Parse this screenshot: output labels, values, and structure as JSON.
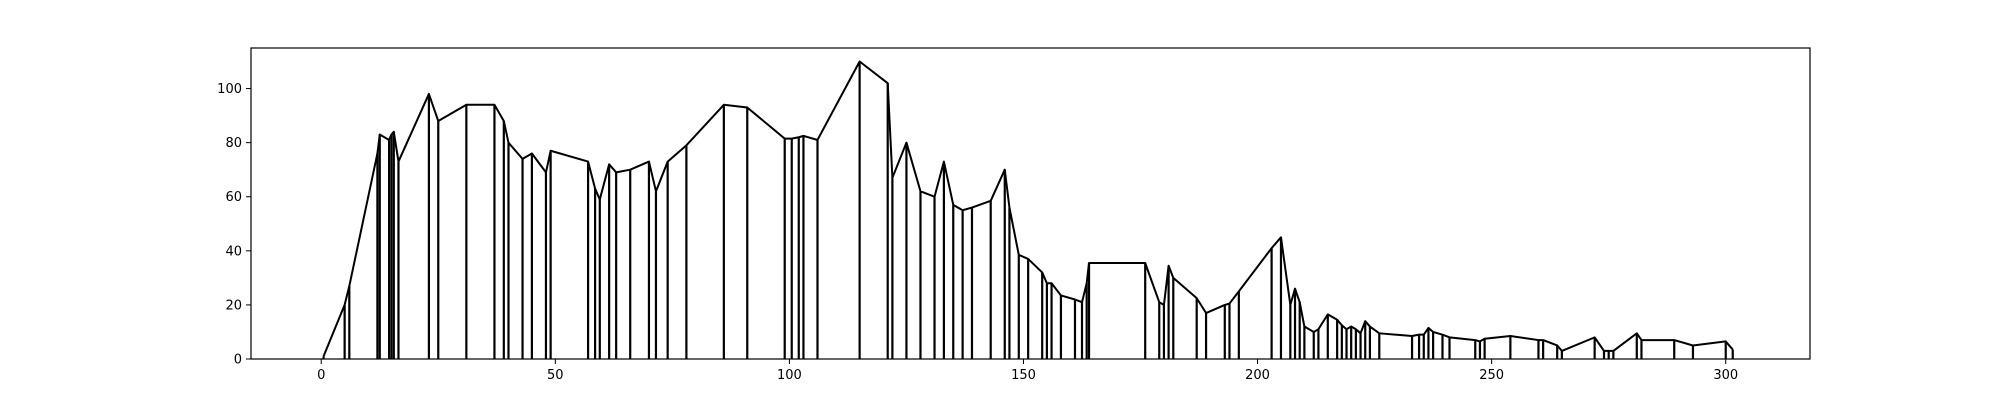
{
  "chart_data": {
    "type": "line",
    "title": "",
    "xlabel": "",
    "ylabel": "",
    "xlim": [
      -15,
      318
    ],
    "ylim": [
      0,
      115
    ],
    "x_ticks": [
      0,
      50,
      100,
      150,
      200,
      250,
      300
    ],
    "y_ticks": [
      0,
      20,
      40,
      60,
      80,
      100
    ],
    "grid": false,
    "legend": "none",
    "series_color": "#000000",
    "note": "Each sample is drawn as a vertical stem from 0 to its value; consecutive tops are joined by a line.",
    "points": [
      [
        0.5,
        1.0
      ],
      [
        5.0,
        20.0
      ],
      [
        6.0,
        27.0
      ],
      [
        12.0,
        76.0
      ],
      [
        12.5,
        83.0
      ],
      [
        14.5,
        81.0
      ],
      [
        15.0,
        83.0
      ],
      [
        15.5,
        84.0
      ],
      [
        16.5,
        73.0
      ],
      [
        23.0,
        98.0
      ],
      [
        25.0,
        88.0
      ],
      [
        31.0,
        94.0
      ],
      [
        37.0,
        94.0
      ],
      [
        39.0,
        88.0
      ],
      [
        40.0,
        80.0
      ],
      [
        43.0,
        74.0
      ],
      [
        45.0,
        76.0
      ],
      [
        48.0,
        69.0
      ],
      [
        49.0,
        77.0
      ],
      [
        57.0,
        73.0
      ],
      [
        58.5,
        63.0
      ],
      [
        59.5,
        59.0
      ],
      [
        61.5,
        72.0
      ],
      [
        63.0,
        69.0
      ],
      [
        66.0,
        70.0
      ],
      [
        70.0,
        73.0
      ],
      [
        71.5,
        62.0
      ],
      [
        74.0,
        73.0
      ],
      [
        78.0,
        79.0
      ],
      [
        86.0,
        94.0
      ],
      [
        91.0,
        93.0
      ],
      [
        99.0,
        81.5
      ],
      [
        100.5,
        81.5
      ],
      [
        102.0,
        82.0
      ],
      [
        103.0,
        82.5
      ],
      [
        106.0,
        81.0
      ],
      [
        115.0,
        110.0
      ],
      [
        121.0,
        102.0
      ],
      [
        122.0,
        67.0
      ],
      [
        125.0,
        80.0
      ],
      [
        128.0,
        62.0
      ],
      [
        131.0,
        60.0
      ],
      [
        133.0,
        73.0
      ],
      [
        135.0,
        57.0
      ],
      [
        137.0,
        55.0
      ],
      [
        139.0,
        56.0
      ],
      [
        143.0,
        58.5
      ],
      [
        146.0,
        70.0
      ],
      [
        147.0,
        56.0
      ],
      [
        149.0,
        38.5
      ],
      [
        151.0,
        37.0
      ],
      [
        154.0,
        32.0
      ],
      [
        155.0,
        28.0
      ],
      [
        156.0,
        28.0
      ],
      [
        158.0,
        23.5
      ],
      [
        161.0,
        22.0
      ],
      [
        162.5,
        21.0
      ],
      [
        163.5,
        28.0
      ],
      [
        164.0,
        35.5
      ],
      [
        176.0,
        35.5
      ],
      [
        179.0,
        21.0
      ],
      [
        180.0,
        20.0
      ],
      [
        181.0,
        34.5
      ],
      [
        182.0,
        30.0
      ],
      [
        187.0,
        22.5
      ],
      [
        189.0,
        17.0
      ],
      [
        193.0,
        20.0
      ],
      [
        194.0,
        20.5
      ],
      [
        196.0,
        25.0
      ],
      [
        203.0,
        41.0
      ],
      [
        205.0,
        45.0
      ],
      [
        207.0,
        20.0
      ],
      [
        208.0,
        26.0
      ],
      [
        209.0,
        21.0
      ],
      [
        210.0,
        12.0
      ],
      [
        212.0,
        10.0
      ],
      [
        213.0,
        11.0
      ],
      [
        215.0,
        16.5
      ],
      [
        217.0,
        14.5
      ],
      [
        218.0,
        12.5
      ],
      [
        219.0,
        11.0
      ],
      [
        220.0,
        12.0
      ],
      [
        221.0,
        11.0
      ],
      [
        222.0,
        9.5
      ],
      [
        223.0,
        14.0
      ],
      [
        224.0,
        12.0
      ],
      [
        226.0,
        9.5
      ],
      [
        233.0,
        8.5
      ],
      [
        234.5,
        9.0
      ],
      [
        235.5,
        9.0
      ],
      [
        236.5,
        11.5
      ],
      [
        237.5,
        10.0
      ],
      [
        239.5,
        9.0
      ],
      [
        241.0,
        8.0
      ],
      [
        246.5,
        7.0
      ],
      [
        247.5,
        6.5
      ],
      [
        248.5,
        7.5
      ],
      [
        254.0,
        8.5
      ],
      [
        260.0,
        7.0
      ],
      [
        261.0,
        7.0
      ],
      [
        264.0,
        5.0
      ],
      [
        265.0,
        3.0
      ],
      [
        272.0,
        8.0
      ],
      [
        274.0,
        3.0
      ],
      [
        275.0,
        3.0
      ],
      [
        276.0,
        3.0
      ],
      [
        281.0,
        9.5
      ],
      [
        282.0,
        7.0
      ],
      [
        289.0,
        7.0
      ],
      [
        293.0,
        5.0
      ],
      [
        300.0,
        6.5
      ],
      [
        301.5,
        3.5
      ]
    ]
  }
}
